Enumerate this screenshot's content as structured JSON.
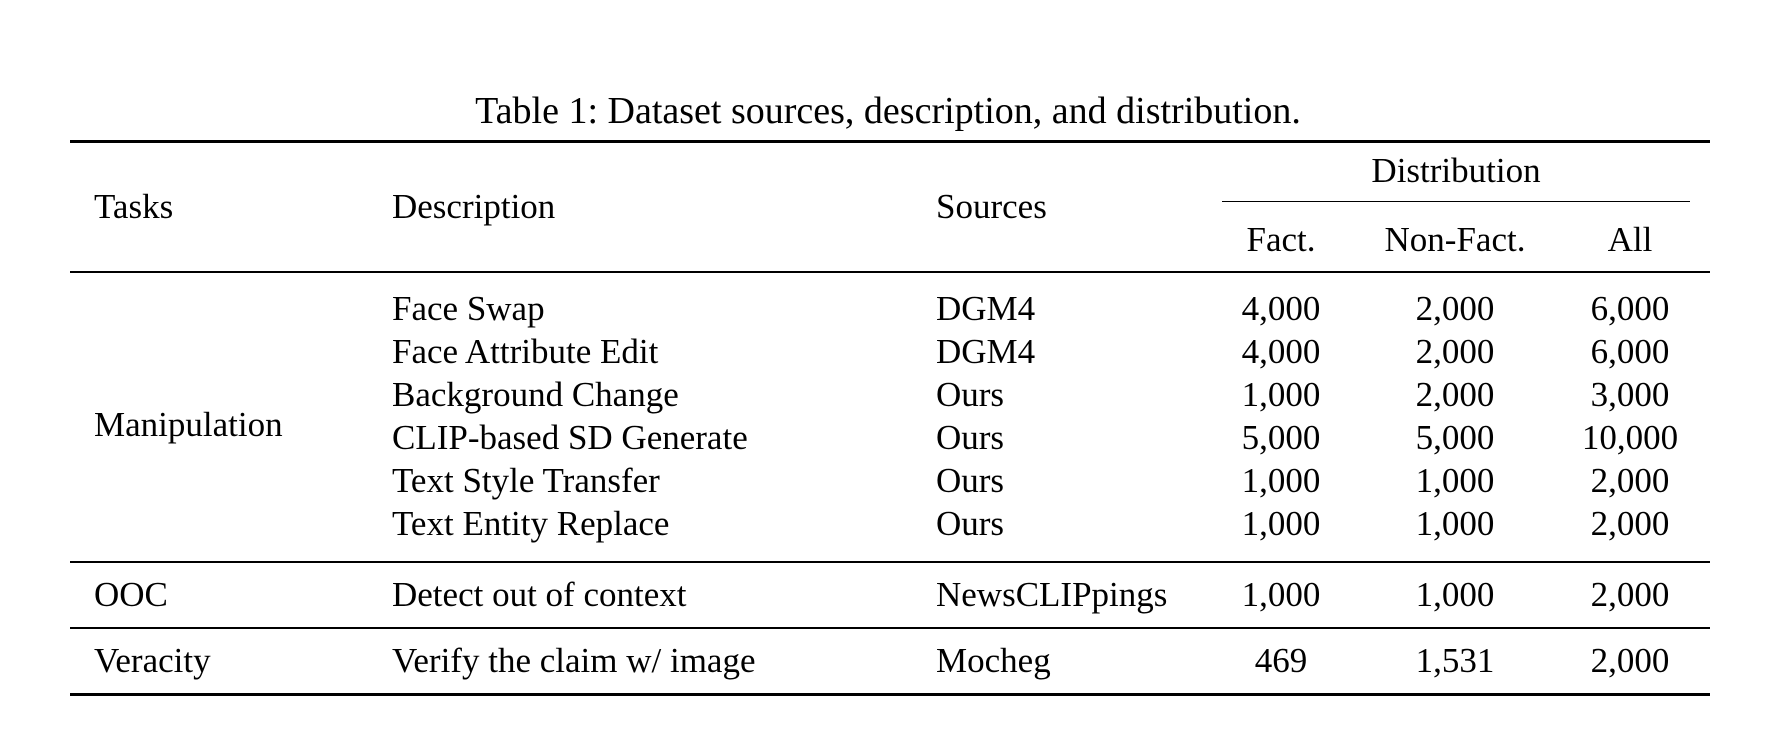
{
  "caption": "Table 1: Dataset sources, description, and distribution.",
  "header": {
    "tasks": "Tasks",
    "description": "Description",
    "sources": "Sources",
    "distribution": "Distribution",
    "fact": "Fact.",
    "non_fact": "Non-Fact.",
    "all": "All"
  },
  "groups": [
    {
      "task": "Manipulation",
      "rows": [
        {
          "description": "Face Swap",
          "source": "DGM4",
          "fact": "4,000",
          "non_fact": "2,000",
          "all": "6,000"
        },
        {
          "description": "Face Attribute Edit",
          "source": "DGM4",
          "fact": "4,000",
          "non_fact": "2,000",
          "all": "6,000"
        },
        {
          "description": "Background Change",
          "source": "Ours",
          "fact": "1,000",
          "non_fact": "2,000",
          "all": "3,000"
        },
        {
          "description": "CLIP-based SD Generate",
          "source": "Ours",
          "fact": "5,000",
          "non_fact": "5,000",
          "all": "10,000"
        },
        {
          "description": "Text Style Transfer",
          "source": "Ours",
          "fact": "1,000",
          "non_fact": "1,000",
          "all": "2,000"
        },
        {
          "description": "Text Entity Replace",
          "source": "Ours",
          "fact": "1,000",
          "non_fact": "1,000",
          "all": "2,000"
        }
      ]
    },
    {
      "task": "OOC",
      "rows": [
        {
          "description": "Detect out of context",
          "source": "NewsCLIPpings",
          "fact": "1,000",
          "non_fact": "1,000",
          "all": "2,000"
        }
      ]
    },
    {
      "task": "Veracity",
      "rows": [
        {
          "description": "Verify the claim w/ image",
          "source": "Mocheg",
          "fact": "469",
          "non_fact": "1,531",
          "all": "2,000"
        }
      ]
    }
  ]
}
